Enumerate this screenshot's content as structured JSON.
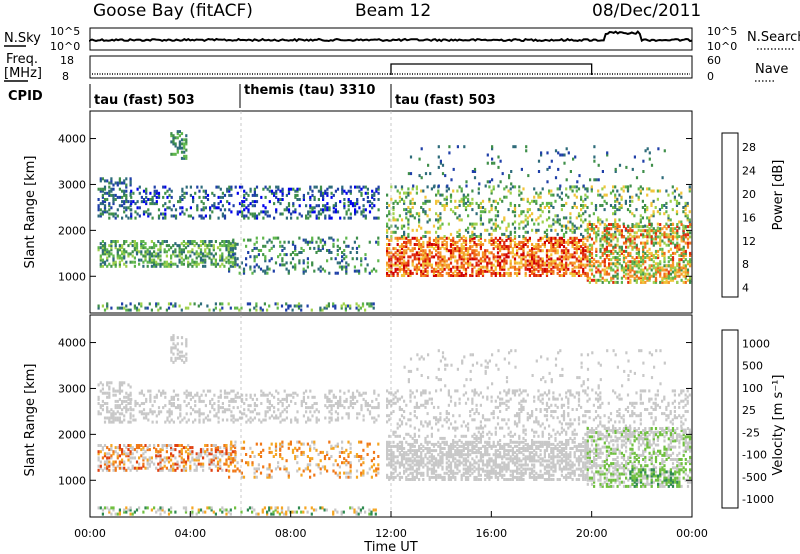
{
  "header": {
    "station": "Goose Bay (fitACF)",
    "beam": "Beam 12",
    "date": "08/Dec/2011"
  },
  "strip": {
    "nsky_label": "N.Sky",
    "nsky_ticks": [
      "10^5",
      "10^0"
    ],
    "nsky_right_ticks": [
      "10^5",
      "10^0"
    ],
    "nsearch_label": "N.Search",
    "freq_label_line1": "Freq.",
    "freq_label_line2": "[MHz]",
    "freq_ticks": [
      "18",
      "8"
    ],
    "nave_ticks": [
      "60",
      "0"
    ],
    "nave_label": "Nave",
    "cpid_label": "CPID",
    "cpid_segments": [
      "tau (fast) 503",
      "themis (tau) 3310",
      "tau (fast) 503"
    ]
  },
  "colors": {
    "power_scale": [
      "#0000ee",
      "#1f3fa8",
      "#2e6b7a",
      "#3f8f4a",
      "#5fb64c",
      "#9fd14c",
      "#f2c43a",
      "#f59a2a",
      "#f06a18",
      "#e02a0e",
      "#d00000"
    ],
    "velocity_scale": [
      "#2030b0",
      "#205ea0",
      "#2f8a50",
      "#70c040",
      "#c8c8c8",
      "#c8c8c8",
      "#f5a623",
      "#f07818",
      "#e04010",
      "#d00000"
    ]
  },
  "chart_data": [
    {
      "type": "heatmap",
      "name": "power",
      "xlabel": "",
      "ylabel": "Slant Range [km]",
      "x_range_hours": [
        0,
        24
      ],
      "ylim": [
        200,
        4600
      ],
      "yticks": [
        "1000",
        "2000",
        "3000",
        "4000"
      ],
      "colorbar_label": "Power [dB]",
      "colorbar_ticks": [
        "28",
        "24",
        "20",
        "16",
        "12",
        "8",
        "4"
      ],
      "colorbar_range": [
        0,
        30
      ]
    },
    {
      "type": "heatmap",
      "name": "velocity",
      "xlabel": "Time UT",
      "ylabel": "Slant Range [km]",
      "x_range_hours": [
        0,
        24
      ],
      "ylim": [
        200,
        4600
      ],
      "xticks": [
        "00:00",
        "04:00",
        "08:00",
        "12:00",
        "16:00",
        "20:00",
        "00:00"
      ],
      "yticks": [
        "1000",
        "2000",
        "3000",
        "4000"
      ],
      "colorbar_label": "Velocity [m s⁻¹]",
      "colorbar_ticks": [
        "1000",
        "500",
        "100",
        "25",
        "-25",
        "-100",
        "-500",
        "-1000"
      ]
    }
  ]
}
